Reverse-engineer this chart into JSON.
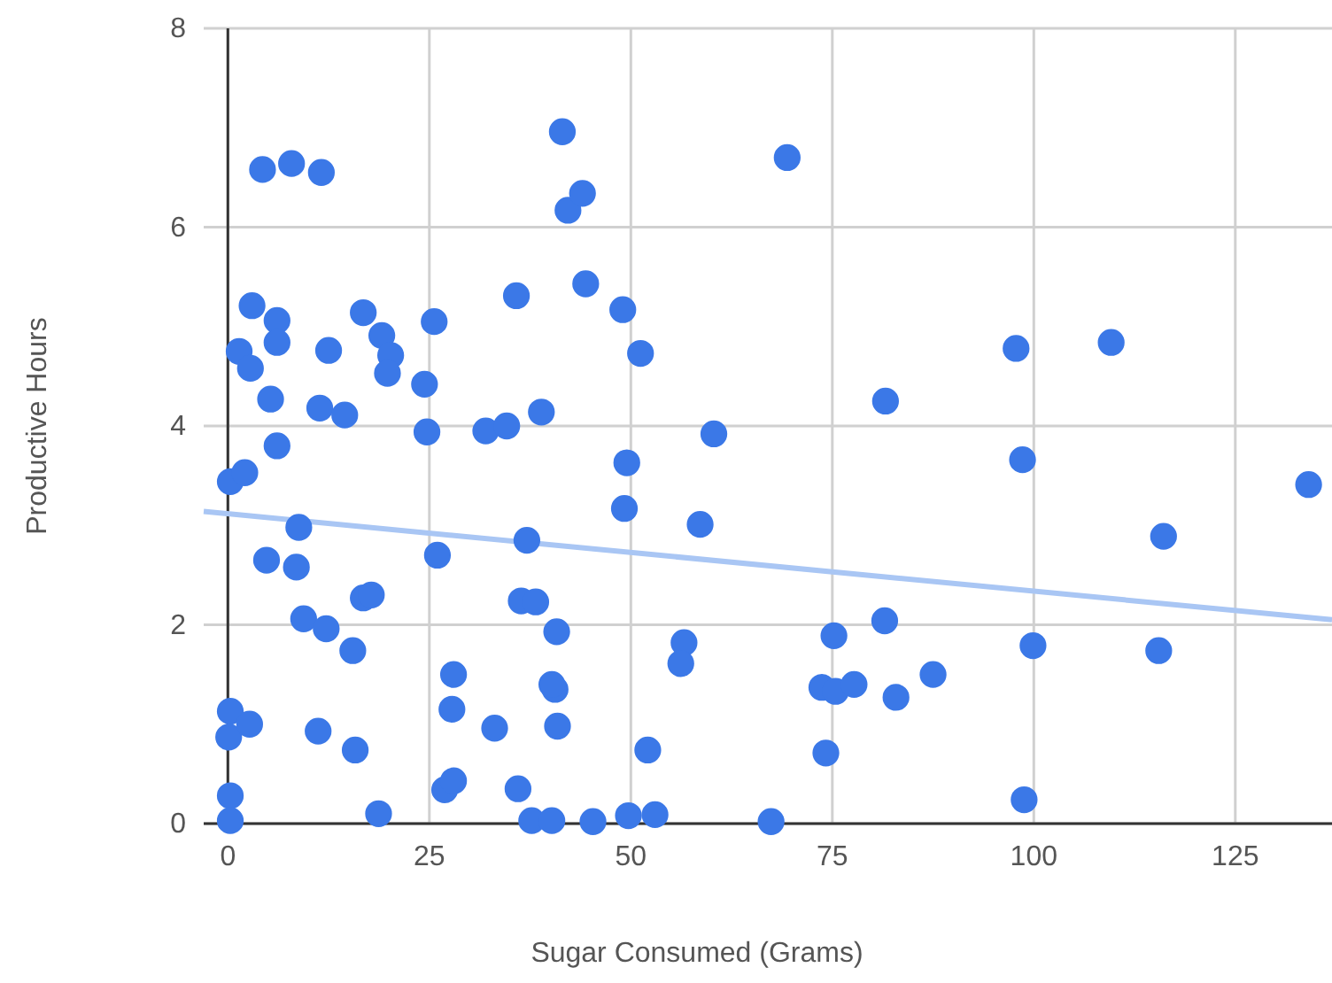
{
  "chart_data": {
    "type": "scatter",
    "xlabel": "Sugar Consumed (Grams)",
    "ylabel": "Productive Hours",
    "xlim": [
      -3,
      137
    ],
    "ylim": [
      0,
      8
    ],
    "xticks": [
      0,
      25,
      50,
      75,
      100,
      125
    ],
    "yticks": [
      0,
      2,
      4,
      6,
      8
    ],
    "grid": true,
    "series": [
      {
        "marker": "circle",
        "color": "#3b78e7",
        "x": [
          4.3,
          7.9,
          11.6,
          41.5,
          42.2,
          44,
          44.4,
          3.0,
          6.1,
          6.1,
          1.4,
          2.8,
          12.5,
          16.8,
          19.1,
          20.2,
          19.8,
          25.6,
          24.4,
          35.8,
          5.3,
          11.4,
          14.5,
          24.7,
          32.0,
          34.6,
          38.9,
          6.1,
          0.3,
          2.1,
          8.8,
          4.8,
          8.5,
          26.0,
          37.1,
          9.4,
          12.2,
          16.8,
          17.8,
          36.4,
          38.2,
          40.8,
          15.5,
          28.0,
          27.8,
          0.3,
          0.1,
          2.7,
          11.2,
          15.8,
          33.1,
          40.6,
          40.9,
          40.2,
          26.9,
          28.0,
          36.0,
          0.3,
          0.3,
          18.7,
          37.7,
          40.2,
          69.4,
          49.0,
          51.2,
          60.3,
          81.6,
          97.8,
          109.6,
          49.5,
          49.2,
          58.6,
          98.6,
          116.1,
          134.1,
          56.6,
          56.2,
          75.2,
          81.5,
          73.7,
          75.4,
          77.7,
          82.9,
          87.5,
          99.9,
          115.5,
          52.1,
          74.2,
          98.8,
          45.3,
          49.7,
          53.0,
          67.4
        ],
        "values": [
          6.58,
          6.64,
          6.55,
          6.96,
          6.17,
          6.34,
          5.43,
          5.21,
          5.06,
          4.84,
          4.75,
          4.58,
          4.76,
          5.14,
          4.91,
          4.71,
          4.53,
          5.05,
          4.42,
          5.31,
          4.27,
          4.18,
          4.11,
          3.94,
          3.95,
          4.0,
          4.14,
          3.8,
          3.44,
          3.53,
          2.98,
          2.65,
          2.58,
          2.7,
          2.85,
          2.06,
          1.96,
          2.27,
          2.3,
          2.24,
          2.23,
          1.93,
          1.74,
          1.5,
          1.15,
          1.13,
          0.87,
          1.0,
          0.93,
          0.74,
          0.96,
          1.35,
          0.98,
          1.4,
          0.34,
          0.43,
          0.35,
          0.28,
          0.03,
          0.1,
          0.03,
          0.03,
          6.7,
          5.17,
          4.73,
          3.92,
          4.25,
          4.78,
          4.84,
          3.63,
          3.17,
          3.01,
          3.66,
          2.89,
          3.41,
          1.82,
          1.61,
          1.89,
          2.04,
          1.37,
          1.33,
          1.4,
          1.27,
          1.5,
          1.79,
          1.74,
          0.74,
          0.71,
          0.24,
          0.02,
          0.08,
          0.09,
          0.02
        ]
      },
      {
        "type": "line",
        "color": "#a9c6f4",
        "x": [
          -3,
          137
        ],
        "values": [
          3.14,
          2.05
        ]
      }
    ]
  }
}
